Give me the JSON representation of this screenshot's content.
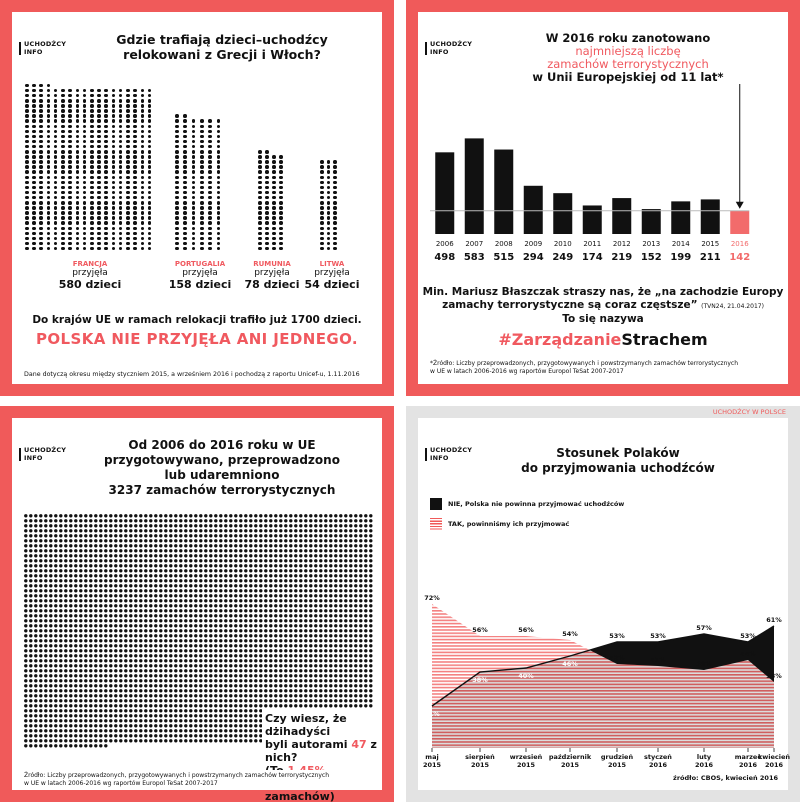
{
  "colors": {
    "accent": "#f26b6b",
    "frame": "#f05a5a",
    "dark": "#111111",
    "grey_frame": "#e3e3e3"
  },
  "logo": {
    "line1": "UCHODŹCY",
    "line2": "INFO"
  },
  "panel1": {
    "title_l1": "Gdzie trafiają dzieci–uchodźcy",
    "title_l2": "relokowani z Grecji i Włoch?",
    "countries": [
      {
        "name": "FRANCJA",
        "verb": "przyjęła",
        "amount": "580 dzieci"
      },
      {
        "name": "PORTUGALIA",
        "verb": "przyjęła",
        "amount": "158 dzieci"
      },
      {
        "name": "RUMUNIA",
        "verb": "przyjęła",
        "amount": "78 dzieci"
      },
      {
        "name": "LITWA",
        "verb": "przyjęła",
        "amount": "54 dzieci"
      }
    ],
    "summary": "Do krajów UE w ramach relokacji trafiło już 1700 dzieci.",
    "highlight": "POLSKA NIE PRZYJĘŁA ANI JEDNEGO.",
    "footnote": "Dane dotyczą okresu między styczniem 2015, a wrześniem 2016 i pochodzą z raportu Unicef-u, 1.11.2016"
  },
  "panel2": {
    "title_l1": "W 2016 roku zanotowano",
    "title_l2": "najmniejszą liczbę",
    "title_l3": "zamachów terrorystycznych",
    "title_l4": "w Unii Europejskiej od 11 lat*",
    "quote_l1": "Min. Mariusz Błaszczak straszy nas, że „na zachodzie Europy",
    "quote_l2": "zamachy terrorystyczne są coraz częstsze”",
    "quote_src": "(TVN24, 21.04.2017)",
    "quote_l3": "To się nazywa",
    "hashtag_a": "#Zarządzanie",
    "hashtag_b": "Strachem",
    "source_l1": "*Źródło: Liczby przeprowadzonych, przygotowywanych i powstrzymanych zamachów terrorystycznych",
    "source_l2": "w UE w latach 2006-2016 wg raportów Europol TeSat 2007-2017"
  },
  "panel3": {
    "title_l1": "Od 2006 do 2016 roku w UE",
    "title_l2": "przygotowywano, przeprowadzono",
    "title_l3": "lub udaremniono",
    "title_l4": "3237 zamachów terrorystycznych",
    "q_l1": "Czy wiesz, że dżihadyści",
    "q_l2a": "byli autorami ",
    "q_l2b": "47",
    "q_l2c": " z nich?",
    "q_l3a": "(To ",
    "q_l3b": "1.45%",
    "q_l3c": " wszystkich",
    "q_l4": "zamachów)",
    "source_l1": "Źródło: Liczby przeprowadzonych, przygotowywanych i powstrzymanych zamachów terrorystycznych",
    "source_l2": "w UE w latach 2006-2016 wg raportów Europol TeSat 2007-2017"
  },
  "panel4": {
    "brand": "UCHODŹCY W POLSCE",
    "title_l1": "Stosunek Polaków",
    "title_l2": "do przyjmowania uchodźców",
    "legend_no": "NIE, Polska nie powinna przyjmować uchodźców",
    "legend_yes": "TAK, powinniśmy ich przyjmować",
    "source": "źródło: CBOS, kwiecień 2016"
  },
  "chart_data": [
    {
      "type": "bar",
      "title": "Gdzie trafiają dzieci–uchodźcy relokowani z Grecji i Włoch?",
      "categories": [
        "FRANCJA",
        "PORTUGALIA",
        "RUMUNIA",
        "LITWA"
      ],
      "values": [
        580,
        158,
        78,
        54
      ]
    },
    {
      "type": "bar",
      "title": "W 2016 roku zanotowano najmniejszą liczbę zamachów terrorystycznych w Unii Europejskiej od 11 lat*",
      "categories": [
        "2006",
        "2007",
        "2008",
        "2009",
        "2010",
        "2011",
        "2012",
        "2013",
        "2014",
        "2015",
        "2016"
      ],
      "values": [
        498,
        583,
        515,
        294,
        249,
        174,
        219,
        152,
        199,
        211,
        142
      ],
      "highlight": "2016"
    },
    {
      "type": "table",
      "title": "Od 2006 do 2016 roku w UE przygotowywano, przeprowadzono lub udaremniono 3237 zamachów terrorystycznych",
      "total": 3237,
      "jihadist": 47,
      "jihadist_share": "1.45%"
    },
    {
      "type": "area",
      "title": "Stosunek Polaków do przyjmowania uchodźców",
      "categories": [
        [
          "maj",
          "2015"
        ],
        [
          "sierpień",
          "2015"
        ],
        [
          "wrzesień",
          "2015"
        ],
        [
          "październik",
          "2015"
        ],
        [
          "grudzień",
          "2015"
        ],
        [
          "styczeń",
          "2016"
        ],
        [
          "luty",
          "2016"
        ],
        [
          "marzec",
          "2016"
        ],
        [
          "kwiecień",
          "2016"
        ]
      ],
      "series": [
        {
          "name": "NIE, Polska nie powinna przyjmować uchodźców",
          "values": [
            21,
            38,
            40,
            46,
            53,
            53,
            57,
            53,
            61
          ],
          "labels": [
            "21%",
            "38%",
            "40%",
            "46%",
            "53%",
            "53%",
            "57%",
            "53%",
            "61%"
          ]
        },
        {
          "name": "TAK, powinniśmy ich przyjmować",
          "values": [
            72,
            56,
            56,
            54,
            42,
            41,
            39,
            44,
            33
          ],
          "labels": [
            "72%",
            "56%",
            "56%",
            "54%",
            "42%",
            "41%",
            "39%",
            "44%",
            "33%"
          ]
        }
      ],
      "ylim": [
        0,
        100
      ]
    }
  ]
}
